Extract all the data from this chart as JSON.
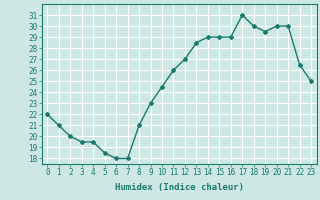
{
  "x": [
    0,
    1,
    2,
    3,
    4,
    5,
    6,
    7,
    8,
    9,
    10,
    11,
    12,
    13,
    14,
    15,
    16,
    17,
    18,
    19,
    20,
    21,
    22,
    23
  ],
  "y": [
    22,
    21,
    20,
    19.5,
    19.5,
    18.5,
    18,
    18,
    21,
    23,
    24.5,
    26,
    27,
    28.5,
    29,
    29,
    29,
    31,
    30,
    29.5,
    30,
    30,
    26.5,
    25
  ],
  "line_color": "#1a7a6e",
  "marker": "D",
  "marker_size": 2,
  "bg_color": "#cde8e4",
  "grid_color": "#ffffff",
  "xlabel": "Humidex (Indice chaleur)",
  "xlim": [
    -0.5,
    23.5
  ],
  "ylim": [
    17.5,
    32
  ],
  "yticks": [
    18,
    19,
    20,
    21,
    22,
    23,
    24,
    25,
    26,
    27,
    28,
    29,
    30,
    31
  ],
  "xticks": [
    0,
    1,
    2,
    3,
    4,
    5,
    6,
    7,
    8,
    9,
    10,
    11,
    12,
    13,
    14,
    15,
    16,
    17,
    18,
    19,
    20,
    21,
    22,
    23
  ],
  "tick_label_size": 5.5,
  "xlabel_size": 6.5,
  "line_width": 1.0
}
